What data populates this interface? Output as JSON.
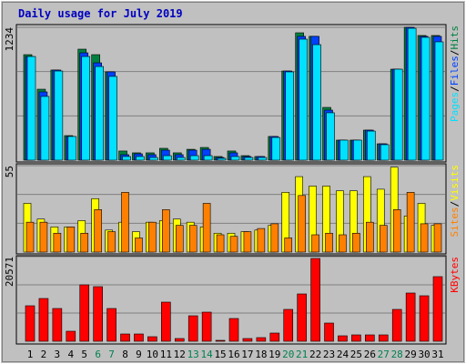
{
  "chart_data": [
    {
      "type": "bar",
      "title": "Daily usage for July 2019",
      "ylim": [
        0,
        1234
      ],
      "yticks": [
        1234
      ],
      "legend_separator": "/",
      "series": [
        {
          "name": "Pages",
          "color": "#00e0ff",
          "values": [
            963,
            592,
            828,
            220,
            963,
            870,
            778,
            34,
            34,
            25,
            42,
            25,
            42,
            42,
            17,
            34,
            25,
            25,
            211,
            820,
            1124,
            1073,
            440,
            186,
            186,
            270,
            144,
            845,
            1225,
            1141,
            1099
          ]
        },
        {
          "name": "Files",
          "color": "#0040ff",
          "values": [
            963,
            634,
            837,
            220,
            997,
            904,
            820,
            51,
            59,
            51,
            93,
            51,
            93,
            101,
            25,
            68,
            34,
            34,
            220,
            828,
            1150,
            1150,
            465,
            186,
            186,
            279,
            152,
            845,
            1234,
            1150,
            1150
          ]
        },
        {
          "name": "Hits",
          "color": "#008040",
          "values": [
            980,
            659,
            837,
            228,
            1031,
            980,
            820,
            85,
            68,
            68,
            110,
            68,
            101,
            118,
            34,
            85,
            42,
            34,
            220,
            828,
            1183,
            1150,
            490,
            186,
            186,
            279,
            152,
            845,
            1234,
            1158,
            1158
          ]
        }
      ]
    },
    {
      "type": "bar",
      "ylim": [
        0,
        55
      ],
      "yticks": [
        55
      ],
      "legend_separator": "/",
      "series": [
        {
          "name": "Sites",
          "color": "#ff8000",
          "values": [
            19,
            19,
            12,
            16,
            12,
            27,
            13,
            38,
            9,
            19,
            27,
            17,
            17,
            31,
            11,
            10,
            13,
            15,
            18,
            9,
            36,
            11,
            12,
            11,
            12,
            19,
            17,
            27,
            38,
            18,
            18
          ]
        },
        {
          "name": "Visits",
          "color": "#ffff00",
          "values": [
            31,
            21,
            16,
            16,
            20,
            34,
            14,
            19,
            13,
            19,
            20,
            21,
            19,
            16,
            12,
            12,
            13,
            14,
            17,
            38,
            48,
            42,
            42,
            39,
            39,
            48,
            40,
            54,
            23,
            31,
            17
          ]
        }
      ]
    },
    {
      "type": "bar",
      "ylim": [
        0,
        20571
      ],
      "yticks": [
        20571
      ],
      "categories": [
        "1",
        "2",
        "3",
        "4",
        "5",
        "6",
        "7",
        "8",
        "9",
        "10",
        "11",
        "12",
        "13",
        "14",
        "15",
        "16",
        "17",
        "18",
        "19",
        "20",
        "21",
        "22",
        "23",
        "24",
        "25",
        "26",
        "27",
        "28",
        "29",
        "30",
        "31"
      ],
      "category_colors": [
        "#000000",
        "#000000",
        "#000000",
        "#000000",
        "#000000",
        "#00804f",
        "#00804f",
        "#000000",
        "#000000",
        "#000000",
        "#000000",
        "#000000",
        "#00804f",
        "#00804f",
        "#000000",
        "#000000",
        "#000000",
        "#000000",
        "#000000",
        "#00804f",
        "#00804f",
        "#000000",
        "#000000",
        "#000000",
        "#000000",
        "#000000",
        "#00804f",
        "#00804f",
        "#000000",
        "#000000",
        "#000000"
      ],
      "series": [
        {
          "name": "KBytes",
          "color": "#ff0000",
          "values": [
            8627,
            10396,
            7963,
            2433,
            13714,
            13271,
            7963,
            1770,
            1770,
            1106,
            9511,
            664,
            6193,
            7078,
            221,
            5530,
            664,
            885,
            1991,
            7742,
            11502,
            20128,
            4424,
            1327,
            1548,
            1548,
            1548,
            7742,
            11723,
            11060,
            15705
          ]
        }
      ]
    }
  ]
}
